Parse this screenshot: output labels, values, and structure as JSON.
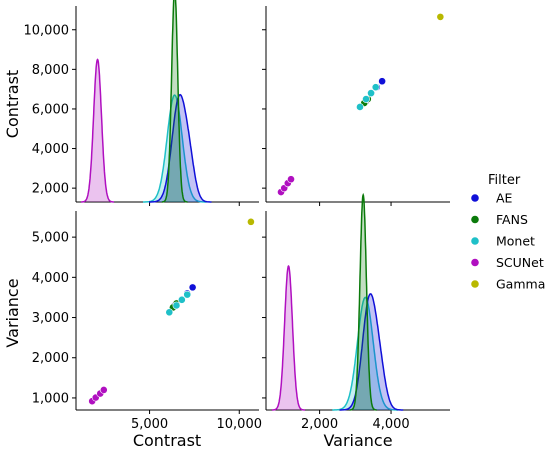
{
  "chart_data": {
    "type": "pairplot",
    "variables": [
      "Contrast",
      "Variance"
    ],
    "legend": {
      "title": "Filter",
      "placement": "right",
      "entries": [
        {
          "label": "AE",
          "color": "#1010d8"
        },
        {
          "label": "FANS",
          "color": "#0b7a0b"
        },
        {
          "label": "Monet",
          "color": "#1fc0c8"
        },
        {
          "label": "SCUNet",
          "color": "#b010c0"
        },
        {
          "label": "Gamma",
          "color": "#b8b800"
        }
      ]
    },
    "axes": {
      "Contrast": {
        "range": [
          900,
          11100
        ],
        "ticks": [
          5000,
          10000
        ],
        "tick_labels": [
          "5,000",
          "10,000"
        ]
      },
      "Contrast_y": {
        "range": [
          1300,
          11200
        ],
        "ticks": [
          2000,
          4000,
          6000,
          8000,
          10000
        ],
        "tick_labels": [
          "2,000",
          "4,000",
          "6,000",
          "8,000",
          "10,000"
        ]
      },
      "Variance": {
        "range": [
          500,
          5650
        ],
        "ticks": [
          2000,
          4000
        ],
        "tick_labels": [
          "2,000",
          "4,000"
        ]
      },
      "Variance_y": {
        "range": [
          700,
          5650
        ],
        "ticks": [
          1000,
          2000,
          3000,
          4000,
          5000
        ],
        "tick_labels": [
          "1,000",
          "2,000",
          "3,000",
          "4,000",
          "5,000"
        ]
      }
    },
    "series": [
      {
        "name": "AE",
        "points": [
          [
            6400,
            3300
          ],
          [
            6800,
            3450
          ],
          [
            7100,
            3600
          ],
          [
            7400,
            3750
          ]
        ]
      },
      {
        "name": "FANS",
        "points": [
          [
            6300,
            3250
          ],
          [
            6500,
            3350
          ]
        ]
      },
      {
        "name": "Monet",
        "points": [
          [
            6100,
            3130
          ],
          [
            6500,
            3300
          ],
          [
            6800,
            3440
          ],
          [
            7100,
            3570
          ]
        ]
      },
      {
        "name": "SCUNet",
        "points": [
          [
            1800,
            920
          ],
          [
            2000,
            1010
          ],
          [
            2250,
            1110
          ],
          [
            2450,
            1200
          ]
        ]
      },
      {
        "name": "Gamma",
        "points": [
          [
            10650,
            5380
          ]
        ]
      }
    ],
    "densities": {
      "Contrast": [
        {
          "name": "Monet",
          "mean": 6400,
          "sd": 420,
          "peak": 5400
        },
        {
          "name": "AE",
          "mean": 6650,
          "sd": 400,
          "peak": 5200,
          "shoulder_mean": 7250,
          "shoulder_sd": 300,
          "shoulder_peak": 1400
        },
        {
          "name": "FANS",
          "mean": 6400,
          "sd": 170,
          "peak": 10700
        },
        {
          "name": "SCUNet",
          "mean": 2100,
          "sd": 220,
          "peak": 7200
        }
      ],
      "Variance": [
        {
          "name": "Monet",
          "mean": 3280,
          "sd": 220,
          "peak": 2800
        },
        {
          "name": "AE",
          "mean": 3400,
          "sd": 200,
          "peak": 2750,
          "shoulder_mean": 3700,
          "shoulder_sd": 160,
          "shoulder_peak": 700
        },
        {
          "name": "FANS",
          "mean": 3220,
          "sd": 90,
          "peak": 5350
        },
        {
          "name": "SCUNet",
          "mean": 1130,
          "sd": 110,
          "peak": 3580
        }
      ]
    }
  }
}
